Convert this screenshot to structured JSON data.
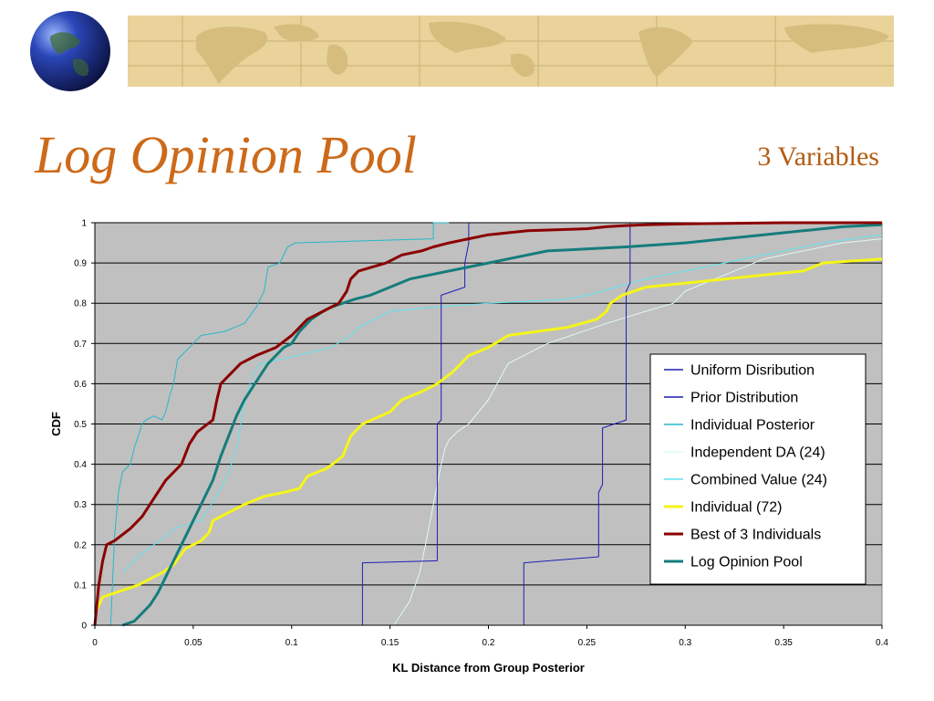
{
  "slide": {
    "title": "Log Opinion Pool",
    "subtitle": "3 Variables"
  },
  "colors": {
    "title": "#cc6a1a",
    "banner": "#e9d39a",
    "plot_background": "#c0c0c0"
  },
  "chart_data": {
    "type": "line",
    "xlabel": "KL Distance from Group Posterior",
    "ylabel": "CDF",
    "xlim": [
      0,
      0.4
    ],
    "ylim": [
      0,
      1
    ],
    "xticks": [
      "0",
      "0.05",
      "0.1",
      "0.15",
      "0.2",
      "0.25",
      "0.3",
      "0.35",
      "0.4"
    ],
    "yticks": [
      "0",
      "0.1",
      "0.2",
      "0.3",
      "0.4",
      "0.5",
      "0.6",
      "0.7",
      "0.8",
      "0.9",
      "1"
    ],
    "grid": "horizontal",
    "legend_position": "right",
    "series": [
      {
        "name": "Uniform Disribution",
        "color": "#1f1fb4",
        "width": 1,
        "x": [
          0.136,
          0.136,
          0.174,
          0.174,
          0.176,
          0.176,
          0.188,
          0.188,
          0.19,
          0.19
        ],
        "y": [
          0,
          0.155,
          0.16,
          0.5,
          0.51,
          0.82,
          0.84,
          0.9,
          0.95,
          1.0
        ]
      },
      {
        "name": "Prior Distribution",
        "color": "#1f1fb4",
        "width": 1,
        "x": [
          0.218,
          0.218,
          0.256,
          0.256,
          0.258,
          0.258,
          0.27,
          0.27,
          0.272,
          0.272
        ],
        "y": [
          0,
          0.155,
          0.17,
          0.33,
          0.35,
          0.49,
          0.51,
          0.83,
          0.85,
          1.0
        ]
      },
      {
        "name": "Individual Posterior",
        "color": "#26b8c8",
        "width": 1,
        "x": [
          0.008,
          0.01,
          0.012,
          0.014,
          0.018,
          0.02,
          0.024,
          0.026,
          0.03,
          0.034,
          0.036,
          0.038,
          0.04,
          0.042,
          0.044,
          0.05,
          0.054,
          0.066,
          0.076,
          0.082,
          0.086,
          0.088,
          0.094,
          0.098,
          0.102,
          0.172,
          0.172,
          0.18
        ],
        "y": [
          0,
          0.22,
          0.33,
          0.38,
          0.4,
          0.44,
          0.5,
          0.51,
          0.52,
          0.51,
          0.53,
          0.57,
          0.6,
          0.66,
          0.67,
          0.7,
          0.72,
          0.73,
          0.75,
          0.79,
          0.83,
          0.89,
          0.9,
          0.94,
          0.95,
          0.96,
          1.0,
          1.0
        ]
      },
      {
        "name": "Independent DA (24)",
        "color": "#e0f8f8",
        "width": 1,
        "x": [
          0.152,
          0.16,
          0.165,
          0.168,
          0.172,
          0.176,
          0.178,
          0.18,
          0.184,
          0.19,
          0.2,
          0.21,
          0.23,
          0.26,
          0.28,
          0.294,
          0.3,
          0.32,
          0.34,
          0.36,
          0.38,
          0.4
        ],
        "y": [
          0,
          0.06,
          0.13,
          0.2,
          0.3,
          0.4,
          0.44,
          0.46,
          0.48,
          0.5,
          0.56,
          0.65,
          0.7,
          0.75,
          0.78,
          0.8,
          0.83,
          0.87,
          0.91,
          0.93,
          0.95,
          0.96
        ]
      },
      {
        "name": "Combined Value (24)",
        "color": "#5fe4f0",
        "width": 1,
        "x": [
          0.014,
          0.018,
          0.022,
          0.03,
          0.036,
          0.04,
          0.046,
          0.054,
          0.064,
          0.068,
          0.072,
          0.076,
          0.08,
          0.084,
          0.094,
          0.12,
          0.13,
          0.134,
          0.15,
          0.172,
          0.2,
          0.24,
          0.25,
          0.265,
          0.28,
          0.3,
          0.34,
          0.37,
          0.4
        ],
        "y": [
          0.13,
          0.15,
          0.17,
          0.2,
          0.22,
          0.24,
          0.25,
          0.26,
          0.34,
          0.38,
          0.44,
          0.55,
          0.62,
          0.65,
          0.66,
          0.69,
          0.72,
          0.74,
          0.78,
          0.79,
          0.8,
          0.81,
          0.82,
          0.84,
          0.86,
          0.88,
          0.92,
          0.95,
          0.97
        ]
      },
      {
        "name": "Individual (72)",
        "color": "#f5f51a",
        "width": 3,
        "x": [
          0,
          0.004,
          0.01,
          0.016,
          0.022,
          0.026,
          0.03,
          0.034,
          0.04,
          0.046,
          0.05,
          0.054,
          0.058,
          0.06,
          0.064,
          0.068,
          0.076,
          0.086,
          0.096,
          0.104,
          0.108,
          0.118,
          0.126,
          0.13,
          0.136,
          0.15,
          0.156,
          0.166,
          0.174,
          0.182,
          0.19,
          0.2,
          0.21,
          0.24,
          0.255,
          0.26,
          0.262,
          0.268,
          0.28,
          0.3,
          0.34,
          0.36,
          0.37,
          0.4
        ],
        "y": [
          0.03,
          0.07,
          0.08,
          0.09,
          0.1,
          0.11,
          0.12,
          0.13,
          0.15,
          0.19,
          0.2,
          0.21,
          0.23,
          0.26,
          0.27,
          0.28,
          0.3,
          0.32,
          0.33,
          0.34,
          0.37,
          0.39,
          0.42,
          0.47,
          0.5,
          0.53,
          0.56,
          0.58,
          0.6,
          0.63,
          0.67,
          0.69,
          0.72,
          0.74,
          0.76,
          0.78,
          0.8,
          0.82,
          0.84,
          0.85,
          0.87,
          0.88,
          0.9,
          0.91
        ]
      },
      {
        "name": "Best of 3 Individuals",
        "color": "#8b0000",
        "width": 3,
        "x": [
          0,
          0.002,
          0.004,
          0.006,
          0.01,
          0.018,
          0.024,
          0.028,
          0.032,
          0.036,
          0.04,
          0.044,
          0.048,
          0.052,
          0.06,
          0.062,
          0.064,
          0.068,
          0.074,
          0.082,
          0.092,
          0.1,
          0.104,
          0.108,
          0.116,
          0.124,
          0.128,
          0.13,
          0.134,
          0.148,
          0.156,
          0.166,
          0.172,
          0.18,
          0.19,
          0.2,
          0.22,
          0.25,
          0.26,
          0.27,
          0.28,
          0.3,
          0.35,
          0.4
        ],
        "y": [
          0,
          0.1,
          0.16,
          0.2,
          0.21,
          0.24,
          0.27,
          0.3,
          0.33,
          0.36,
          0.38,
          0.4,
          0.45,
          0.48,
          0.51,
          0.56,
          0.6,
          0.62,
          0.65,
          0.67,
          0.69,
          0.72,
          0.74,
          0.76,
          0.78,
          0.8,
          0.83,
          0.86,
          0.88,
          0.9,
          0.92,
          0.93,
          0.94,
          0.95,
          0.96,
          0.97,
          0.98,
          0.985,
          0.99,
          0.993,
          0.995,
          0.997,
          1.0,
          1.0
        ]
      },
      {
        "name": "Log Opinion Pool",
        "color": "#167c7c",
        "width": 3,
        "x": [
          0.014,
          0.02,
          0.024,
          0.028,
          0.032,
          0.036,
          0.04,
          0.044,
          0.048,
          0.052,
          0.056,
          0.06,
          0.064,
          0.068,
          0.072,
          0.076,
          0.08,
          0.084,
          0.088,
          0.092,
          0.096,
          0.1,
          0.104,
          0.11,
          0.116,
          0.12,
          0.126,
          0.132,
          0.14,
          0.15,
          0.16,
          0.17,
          0.18,
          0.19,
          0.2,
          0.21,
          0.23,
          0.27,
          0.3,
          0.32,
          0.34,
          0.36,
          0.38,
          0.4
        ],
        "y": [
          0,
          0.01,
          0.03,
          0.05,
          0.08,
          0.12,
          0.16,
          0.2,
          0.24,
          0.28,
          0.32,
          0.36,
          0.42,
          0.47,
          0.52,
          0.56,
          0.59,
          0.62,
          0.65,
          0.67,
          0.69,
          0.7,
          0.73,
          0.76,
          0.78,
          0.79,
          0.8,
          0.81,
          0.82,
          0.84,
          0.86,
          0.87,
          0.88,
          0.89,
          0.9,
          0.91,
          0.93,
          0.94,
          0.95,
          0.96,
          0.97,
          0.98,
          0.99,
          0.995
        ]
      }
    ]
  }
}
